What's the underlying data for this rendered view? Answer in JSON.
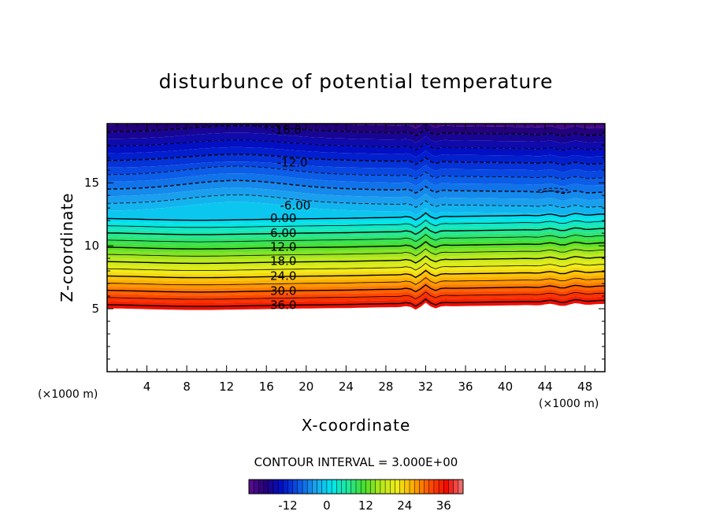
{
  "chart_data": {
    "type": "contour",
    "title": "disturbunce of potential temperature",
    "xlabel": "X-coordinate",
    "ylabel": "Z-coordinate",
    "x_unit": "(×1000 m)",
    "y_unit": "(×1000 m)",
    "xlim": [
      0,
      50
    ],
    "ylim": [
      0,
      19.7
    ],
    "x_ticks": [
      4,
      8,
      12,
      16,
      20,
      24,
      28,
      32,
      36,
      40,
      44,
      48
    ],
    "y_ticks": [
      5,
      10,
      15
    ],
    "contour_interval_text": "CONTOUR INTERVAL = 3.000E+00",
    "contour_interval": 3,
    "contour_labels": [
      {
        "text": "-18.0",
        "value": -18,
        "x": 18,
        "z": 19.2
      },
      {
        "text": "-12.0",
        "value": -12,
        "x": 18.6,
        "z": 16.6
      },
      {
        "text": "-6.00",
        "value": -6,
        "x": 18.9,
        "z": 13.2
      },
      {
        "text": "0.00",
        "value": 0,
        "x": 17.7,
        "z": 12.2
      },
      {
        "text": "6.00",
        "value": 6,
        "x": 17.7,
        "z": 11.0
      },
      {
        "text": "12.0",
        "value": 12,
        "x": 17.7,
        "z": 9.9
      },
      {
        "text": "18.0",
        "value": 18,
        "x": 17.7,
        "z": 8.8
      },
      {
        "text": "24.0",
        "value": 24,
        "x": 17.7,
        "z": 7.6
      },
      {
        "text": "30.0",
        "value": 30,
        "x": 17.7,
        "z": 6.4
      },
      {
        "text": "36.0",
        "value": 36,
        "x": 17.7,
        "z": 5.3
      }
    ],
    "colorbar": {
      "min": -24,
      "max": 42,
      "tick_values": [
        -12,
        0,
        12,
        24,
        36
      ],
      "tick_labels": [
        "-12",
        "0",
        "12",
        "24",
        "36"
      ]
    },
    "colormap": [
      "#5a0f8c",
      "#24007a",
      "#0010c8",
      "#0a55e6",
      "#1aa0ee",
      "#00e4f0",
      "#20e89a",
      "#46de2c",
      "#b6e81c",
      "#f0ec16",
      "#ffa800",
      "#ff4c00",
      "#f00a00",
      "#f07a7a"
    ]
  }
}
